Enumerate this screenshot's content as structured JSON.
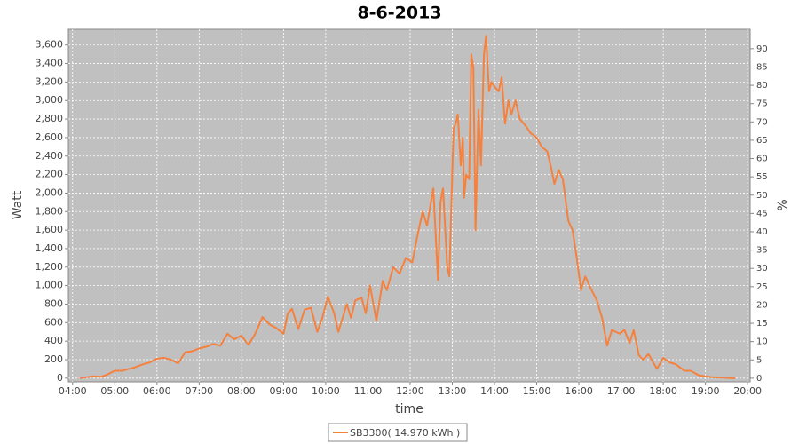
{
  "chart_data": {
    "type": "line",
    "title": "8-6-2013",
    "x_label": "time",
    "y_label": "Watt",
    "y2_label": "%",
    "xlim": [
      3.9,
      20.06
    ],
    "xticks": [
      {
        "value": 4,
        "label": "04:00"
      },
      {
        "value": 5,
        "label": "05:00"
      },
      {
        "value": 6,
        "label": "06:00"
      },
      {
        "value": 7,
        "label": "07:00"
      },
      {
        "value": 8,
        "label": "08:00"
      },
      {
        "value": 9,
        "label": "09:00"
      },
      {
        "value": 10,
        "label": "10:00"
      },
      {
        "value": 11,
        "label": "11:00"
      },
      {
        "value": 12,
        "label": "12:00"
      },
      {
        "value": 13,
        "label": "13:00"
      },
      {
        "value": 14,
        "label": "14:00"
      },
      {
        "value": 15,
        "label": "15:00"
      },
      {
        "value": 16,
        "label": "16:00"
      },
      {
        "value": 17,
        "label": "17:00"
      },
      {
        "value": 18,
        "label": "18:00"
      },
      {
        "value": 19,
        "label": "19:00"
      },
      {
        "value": 20,
        "label": "20:00"
      }
    ],
    "ylim": [
      -40,
      3770
    ],
    "yticks": [
      0,
      200,
      400,
      600,
      800,
      {
        "value": 1000,
        "label": "1,000"
      },
      {
        "value": 1200,
        "label": "1,200"
      },
      {
        "value": 1400,
        "label": "1,400"
      },
      {
        "value": 1600,
        "label": "1,600"
      },
      {
        "value": 1800,
        "label": "1,800"
      },
      {
        "value": 2000,
        "label": "2,000"
      },
      {
        "value": 2200,
        "label": "2,200"
      },
      {
        "value": 2400,
        "label": "2,400"
      },
      {
        "value": 2600,
        "label": "2,600"
      },
      {
        "value": 2800,
        "label": "2,800"
      },
      {
        "value": 3000,
        "label": "3,000"
      },
      {
        "value": 3200,
        "label": "3,200"
      },
      {
        "value": 3400,
        "label": "3,400"
      },
      {
        "value": 3600,
        "label": "3,600"
      }
    ],
    "y2lim": [
      -1,
      95.3
    ],
    "y2ticks": [
      0,
      5,
      10,
      15,
      20,
      25,
      30,
      35,
      40,
      45,
      50,
      55,
      60,
      65,
      70,
      75,
      80,
      85,
      90
    ],
    "grid": true,
    "legend": "bottom",
    "series": [
      {
        "name": "SB3300( 14.970 kWh )",
        "color": "#f5813f",
        "x": [
          4.17,
          4.33,
          4.5,
          4.67,
          4.83,
          5,
          5.17,
          5.33,
          5.5,
          5.67,
          5.83,
          6,
          6.17,
          6.33,
          6.5,
          6.67,
          6.83,
          7,
          7.17,
          7.33,
          7.5,
          7.67,
          7.83,
          8,
          8.17,
          8.33,
          8.5,
          8.67,
          8.83,
          9,
          9.1,
          9.2,
          9.35,
          9.5,
          9.65,
          9.8,
          9.92,
          10.05,
          10.2,
          10.3,
          10.42,
          10.5,
          10.6,
          10.7,
          10.85,
          10.95,
          11.05,
          11.2,
          11.35,
          11.45,
          11.6,
          11.75,
          11.9,
          12.05,
          12.2,
          12.3,
          12.4,
          12.55,
          12.66,
          12.72,
          12.78,
          12.88,
          12.93,
          13.03,
          13.08,
          13.13,
          13.2,
          13.25,
          13.28,
          13.33,
          13.4,
          13.45,
          13.5,
          13.55,
          13.62,
          13.68,
          13.75,
          13.8,
          13.87,
          13.93,
          14,
          14.1,
          14.17,
          14.25,
          14.33,
          14.4,
          14.5,
          14.6,
          14.75,
          14.85,
          15,
          15.12,
          15.25,
          15.33,
          15.42,
          15.52,
          15.62,
          15.75,
          15.85,
          15.95,
          16.05,
          16.15,
          16.3,
          16.42,
          16.55,
          16.67,
          16.78,
          16.97,
          17.08,
          17.2,
          17.3,
          17.42,
          17.52,
          17.65,
          17.75,
          17.85,
          18,
          18.15,
          18.3,
          18.5,
          18.65,
          18.85,
          19.15,
          19.4,
          19.7
        ],
        "values": [
          0,
          10,
          20,
          15,
          40,
          80,
          80,
          100,
          120,
          150,
          170,
          210,
          220,
          200,
          160,
          280,
          290,
          320,
          340,
          370,
          350,
          480,
          420,
          460,
          360,
          480,
          660,
          580,
          540,
          480,
          700,
          750,
          530,
          740,
          760,
          500,
          650,
          880,
          700,
          500,
          680,
          800,
          650,
          840,
          870,
          700,
          1000,
          620,
          1050,
          950,
          1200,
          1130,
          1300,
          1250,
          1600,
          1800,
          1650,
          2050,
          1060,
          1900,
          2050,
          1200,
          1100,
          2700,
          2750,
          2850,
          2300,
          2600,
          1950,
          2200,
          2150,
          3500,
          3350,
          1600,
          2900,
          2300,
          3500,
          3700,
          3100,
          3200,
          3150,
          3100,
          3250,
          2750,
          3000,
          2850,
          3000,
          2800,
          2720,
          2650,
          2600,
          2500,
          2450,
          2300,
          2100,
          2250,
          2150,
          1700,
          1600,
          1300,
          950,
          1100,
          950,
          850,
          650,
          350,
          520,
          480,
          520,
          380,
          520,
          250,
          200,
          260,
          180,
          100,
          220,
          170,
          150,
          80,
          80,
          30,
          10,
          5,
          0
        ]
      }
    ]
  }
}
